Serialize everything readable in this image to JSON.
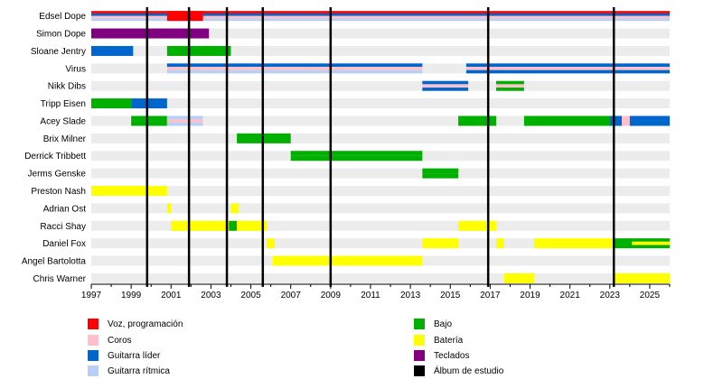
{
  "chart_data": {
    "type": "timeline",
    "title": "",
    "x_range": [
      1997,
      2026
    ],
    "x_ticks": [
      "1997",
      "1999",
      "2001",
      "2003",
      "2005",
      "2007",
      "2009",
      "2011",
      "2013",
      "2015",
      "2017",
      "2019",
      "2021",
      "2023",
      "2025"
    ],
    "members": [
      "Edsel Dope",
      "Simon Dope",
      "Sloane Jentry",
      "Virus",
      "Nikk Dibs",
      "Tripp Eisen",
      "Acey Slade",
      "Brix Milner",
      "Derrick Tribbett",
      "Jerms Genske",
      "Preston Nash",
      "Adrian Ost",
      "Racci Shay",
      "Daniel Fox",
      "Angel Bartolotta",
      "Chris Warner"
    ],
    "roles": {
      "voice": {
        "label": "Voz, programación",
        "color": "#ff0000"
      },
      "coros": {
        "label": "Coros",
        "color": "#ffc0cb"
      },
      "lead": {
        "label": "Guitarra líder",
        "color": "#0066cc"
      },
      "rhythm": {
        "label": "Guitarra rítmica",
        "color": "#b8d0f5"
      },
      "bass": {
        "label": "Bajo",
        "color": "#00b000"
      },
      "drums": {
        "label": "Batería",
        "color": "#ffff00"
      },
      "keys": {
        "label": "Teclados",
        "color": "#800080"
      },
      "album": {
        "label": "Álbum de estudio",
        "color": "#000000"
      }
    },
    "legend_order": [
      [
        "voice",
        "coros",
        "lead",
        "rhythm"
      ],
      [
        "bass",
        "drums",
        "keys",
        "album"
      ]
    ],
    "albums": [
      1999.8,
      2001.9,
      2003.8,
      2005.6,
      2009.0,
      2016.9,
      2023.2
    ],
    "bars": [
      {
        "member": 0,
        "start": 1997,
        "end": 2026,
        "layers": [
          "voice",
          "lead",
          "coros",
          "rhythm"
        ]
      },
      {
        "member": 0,
        "start": 2000.8,
        "end": 2002.6,
        "layers": [
          "voice"
        ]
      },
      {
        "member": 1,
        "start": 1997,
        "end": 2002.9,
        "layers": [
          "keys"
        ]
      },
      {
        "member": 2,
        "start": 1997,
        "end": 1999.1,
        "layers": [
          "lead"
        ]
      },
      {
        "member": 2,
        "start": 2000.8,
        "end": 2004.0,
        "layers": [
          "bass"
        ]
      },
      {
        "member": 3,
        "start": 2000.8,
        "end": 2013.6,
        "layers": [
          "lead",
          "coros",
          "rhythm"
        ]
      },
      {
        "member": 3,
        "start": 2015.8,
        "end": 2023.6,
        "layers": [
          "lead",
          "coros",
          "lead"
        ]
      },
      {
        "member": 3,
        "start": 2023.6,
        "end": 2026,
        "layers": [
          "lead",
          "coros",
          "lead"
        ]
      },
      {
        "member": 4,
        "start": 2013.6,
        "end": 2015.9,
        "layers": [
          "lead",
          "coros",
          "lead"
        ]
      },
      {
        "member": 4,
        "start": 2017.3,
        "end": 2018.7,
        "layers": [
          "bass",
          "coros",
          "bass"
        ]
      },
      {
        "member": 5,
        "start": 1997,
        "end": 1999.0,
        "layers": [
          "bass"
        ]
      },
      {
        "member": 5,
        "start": 1999.0,
        "end": 2000.8,
        "layers": [
          "lead"
        ]
      },
      {
        "member": 6,
        "start": 1999.0,
        "end": 2000.8,
        "layers": [
          "bass",
          "bass"
        ]
      },
      {
        "member": 6,
        "start": 2000.8,
        "end": 2002.6,
        "layers": [
          "rhythm",
          "coros",
          "rhythm"
        ]
      },
      {
        "member": 6,
        "start": 2015.4,
        "end": 2017.3,
        "layers": [
          "bass",
          "bass"
        ]
      },
      {
        "member": 6,
        "start": 2018.7,
        "end": 2023.6,
        "layers": [
          "bass",
          "bass"
        ]
      },
      {
        "member": 6,
        "start": 2023.0,
        "end": 2023.6,
        "layers": [
          "lead",
          "lead"
        ]
      },
      {
        "member": 6,
        "start": 2023.6,
        "end": 2024.0,
        "layers": [
          "coros",
          "coros"
        ]
      },
      {
        "member": 6,
        "start": 2024.0,
        "end": 2026,
        "layers": [
          "lead",
          "lead"
        ]
      },
      {
        "member": 7,
        "start": 2004.3,
        "end": 2007.0,
        "layers": [
          "bass"
        ]
      },
      {
        "member": 8,
        "start": 2007.0,
        "end": 2013.6,
        "layers": [
          "bass",
          "bass"
        ]
      },
      {
        "member": 9,
        "start": 2013.6,
        "end": 2015.4,
        "layers": [
          "bass",
          "bass"
        ]
      },
      {
        "member": 10,
        "start": 1997,
        "end": 2000.8,
        "layers": [
          "drums"
        ]
      },
      {
        "member": 11,
        "start": 2000.8,
        "end": 2001.0,
        "layers": [
          "drums"
        ]
      },
      {
        "member": 11,
        "start": 2004.0,
        "end": 2004.4,
        "layers": [
          "drums"
        ]
      },
      {
        "member": 12,
        "start": 2001.0,
        "end": 2003.9,
        "layers": [
          "drums"
        ]
      },
      {
        "member": 12,
        "start": 2003.9,
        "end": 2004.3,
        "layers": [
          "bass"
        ]
      },
      {
        "member": 12,
        "start": 2004.3,
        "end": 2005.8,
        "layers": [
          "drums"
        ]
      },
      {
        "member": 12,
        "start": 2015.4,
        "end": 2017.3,
        "layers": [
          "drums"
        ]
      },
      {
        "member": 13,
        "start": 2005.8,
        "end": 2006.2,
        "layers": [
          "drums"
        ]
      },
      {
        "member": 13,
        "start": 2013.6,
        "end": 2015.4,
        "layers": [
          "drums"
        ]
      },
      {
        "member": 13,
        "start": 2017.3,
        "end": 2017.7,
        "layers": [
          "drums"
        ]
      },
      {
        "member": 13,
        "start": 2019.2,
        "end": 2023.2,
        "layers": [
          "drums"
        ]
      },
      {
        "member": 13,
        "start": 2023.2,
        "end": 2024.1,
        "layers": [
          "bass"
        ]
      },
      {
        "member": 13,
        "start": 2024.1,
        "end": 2026,
        "layers": [
          "bass",
          "drums",
          "bass"
        ]
      },
      {
        "member": 14,
        "start": 2006.1,
        "end": 2013.6,
        "layers": [
          "drums"
        ]
      },
      {
        "member": 15,
        "start": 2017.7,
        "end": 2019.2,
        "layers": [
          "drums"
        ]
      },
      {
        "member": 15,
        "start": 2023.2,
        "end": 2024.1,
        "layers": [
          "drums"
        ]
      },
      {
        "member": 15,
        "start": 2024.1,
        "end": 2026,
        "layers": [
          "drums",
          "drums"
        ]
      }
    ]
  }
}
